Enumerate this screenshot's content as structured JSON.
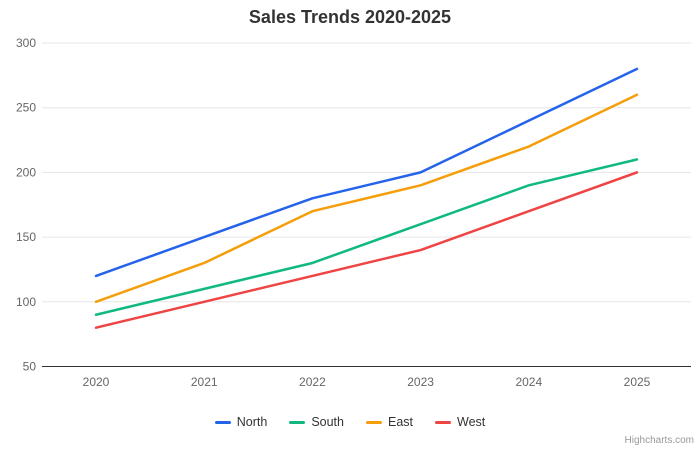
{
  "title": "Sales Trends 2020-2025",
  "credits_label": "Highcharts.com",
  "colors": {
    "grid": "#e6e6e6",
    "axis_line": "#333333",
    "tick_label": "#666666",
    "title_text": "#333333"
  },
  "legend": {
    "items": [
      "North",
      "South",
      "East",
      "West"
    ]
  },
  "chart_data": {
    "type": "line",
    "title": "Sales Trends 2020-2025",
    "categories": [
      "2020",
      "2021",
      "2022",
      "2023",
      "2024",
      "2025"
    ],
    "series": [
      {
        "name": "North",
        "color": "#2563EB",
        "values": [
          120,
          150,
          180,
          200,
          240,
          280
        ]
      },
      {
        "name": "South",
        "color": "#10B981",
        "values": [
          90,
          110,
          130,
          160,
          190,
          210
        ]
      },
      {
        "name": "East",
        "color": "#F59E0B",
        "values": [
          100,
          130,
          170,
          190,
          220,
          260
        ]
      },
      {
        "name": "West",
        "color": "#EF4444",
        "values": [
          80,
          100,
          120,
          140,
          170,
          200
        ]
      }
    ],
    "xlabel": "",
    "ylabel": "",
    "yticks": [
      50,
      100,
      150,
      200,
      250,
      300
    ],
    "ylim": [
      50,
      300
    ],
    "grid": true,
    "legend_position": "bottom"
  }
}
